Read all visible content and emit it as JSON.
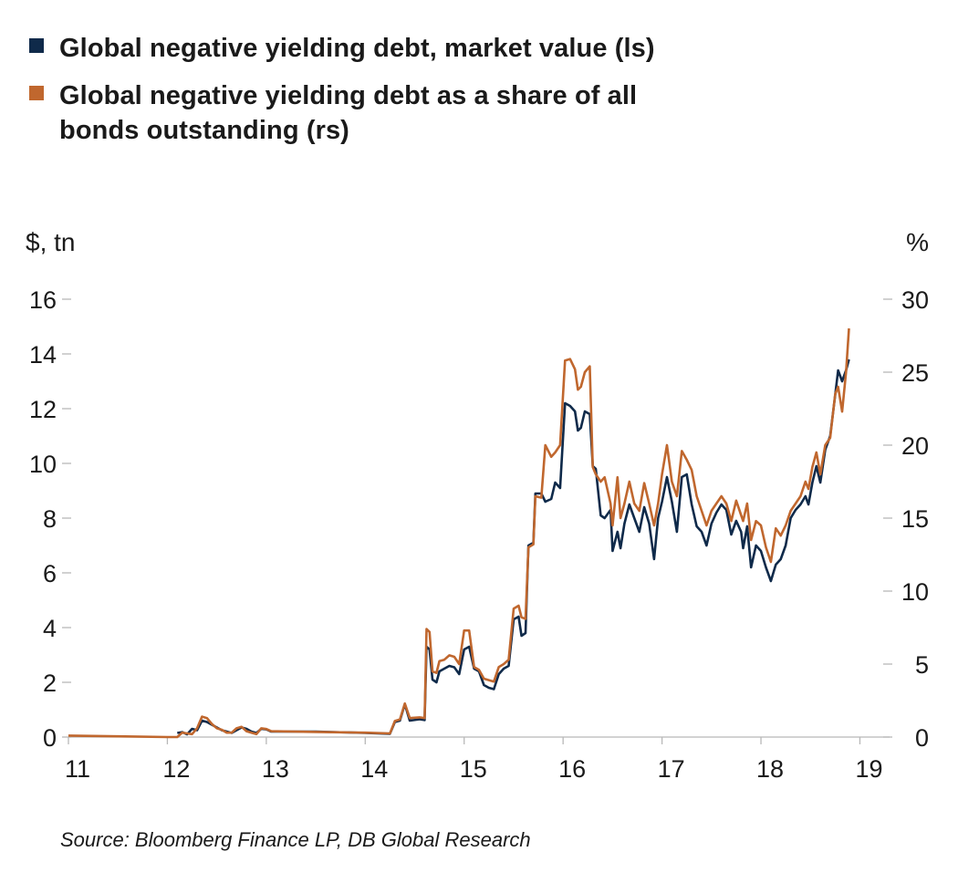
{
  "colors": {
    "navy": "#0f2a4a",
    "orange": "#c0672e",
    "grid": "#b8b8b8"
  },
  "chart_data": {
    "type": "line",
    "legend_placement": "top-left",
    "grid": false,
    "y_left_label": "$, tn",
    "y_right_label": "%",
    "y_left_range": [
      0,
      16
    ],
    "y_right_range": [
      0,
      30
    ],
    "y_left_ticks": [
      "0",
      "2",
      "4",
      "6",
      "8",
      "10",
      "12",
      "14",
      "16"
    ],
    "y_right_ticks": [
      "0",
      "5",
      "10",
      "15",
      "20",
      "25",
      "30"
    ],
    "x_range": [
      2011,
      2019.3
    ],
    "x_ticks": [
      "11",
      "12",
      "13",
      "14",
      "15",
      "16",
      "17",
      "18",
      "19"
    ],
    "series": [
      {
        "name": "Global negative yielding debt, market value (ls)",
        "axis": "left",
        "color": "navy",
        "points": [
          [
            2012.1,
            0.15
          ],
          [
            2012.15,
            0.18
          ],
          [
            2012.2,
            0.1
          ],
          [
            2012.25,
            0.3
          ],
          [
            2012.3,
            0.25
          ],
          [
            2012.35,
            0.6
          ],
          [
            2012.4,
            0.55
          ],
          [
            2012.45,
            0.45
          ],
          [
            2012.5,
            0.35
          ],
          [
            2012.55,
            0.25
          ],
          [
            2012.6,
            0.2
          ],
          [
            2012.65,
            0.15
          ],
          [
            2012.7,
            0.25
          ],
          [
            2012.75,
            0.35
          ],
          [
            2012.8,
            0.3
          ],
          [
            2012.85,
            0.2
          ],
          [
            2012.9,
            0.15
          ],
          [
            2012.95,
            0.3
          ],
          [
            2013.0,
            0.28
          ],
          [
            2013.05,
            0.2
          ],
          [
            2013.5,
            0.2
          ],
          [
            2014.0,
            0.15
          ],
          [
            2014.25,
            0.12
          ],
          [
            2014.3,
            0.55
          ],
          [
            2014.35,
            0.6
          ],
          [
            2014.4,
            1.2
          ],
          [
            2014.45,
            0.6
          ],
          [
            2014.55,
            0.65
          ],
          [
            2014.6,
            0.62
          ],
          [
            2014.62,
            3.3
          ],
          [
            2014.65,
            3.2
          ],
          [
            2014.68,
            2.1
          ],
          [
            2014.72,
            2.0
          ],
          [
            2014.75,
            2.4
          ],
          [
            2014.8,
            2.5
          ],
          [
            2014.85,
            2.6
          ],
          [
            2014.9,
            2.55
          ],
          [
            2014.95,
            2.3
          ],
          [
            2015.0,
            3.2
          ],
          [
            2015.05,
            3.3
          ],
          [
            2015.1,
            2.5
          ],
          [
            2015.15,
            2.4
          ],
          [
            2015.2,
            1.9
          ],
          [
            2015.25,
            1.8
          ],
          [
            2015.3,
            1.75
          ],
          [
            2015.35,
            2.3
          ],
          [
            2015.4,
            2.5
          ],
          [
            2015.45,
            2.6
          ],
          [
            2015.5,
            4.3
          ],
          [
            2015.55,
            4.4
          ],
          [
            2015.58,
            3.7
          ],
          [
            2015.62,
            3.8
          ],
          [
            2015.65,
            7.0
          ],
          [
            2015.7,
            7.1
          ],
          [
            2015.72,
            8.9
          ],
          [
            2015.78,
            8.9
          ],
          [
            2015.82,
            8.6
          ],
          [
            2015.88,
            8.7
          ],
          [
            2015.92,
            9.3
          ],
          [
            2015.97,
            9.1
          ],
          [
            2016.02,
            12.2
          ],
          [
            2016.07,
            12.1
          ],
          [
            2016.12,
            11.9
          ],
          [
            2016.15,
            11.2
          ],
          [
            2016.18,
            11.3
          ],
          [
            2016.22,
            11.9
          ],
          [
            2016.27,
            11.8
          ],
          [
            2016.3,
            9.9
          ],
          [
            2016.33,
            9.8
          ],
          [
            2016.38,
            8.1
          ],
          [
            2016.42,
            8.0
          ],
          [
            2016.48,
            8.3
          ],
          [
            2016.5,
            6.8
          ],
          [
            2016.55,
            7.5
          ],
          [
            2016.58,
            6.9
          ],
          [
            2016.62,
            7.8
          ],
          [
            2016.67,
            8.5
          ],
          [
            2016.72,
            8.0
          ],
          [
            2016.77,
            7.5
          ],
          [
            2016.82,
            8.4
          ],
          [
            2016.87,
            7.8
          ],
          [
            2016.92,
            6.5
          ],
          [
            2016.96,
            8.0
          ],
          [
            2017.0,
            8.6
          ],
          [
            2017.05,
            9.5
          ],
          [
            2017.1,
            8.6
          ],
          [
            2017.15,
            7.5
          ],
          [
            2017.2,
            9.5
          ],
          [
            2017.25,
            9.6
          ],
          [
            2017.3,
            8.5
          ],
          [
            2017.35,
            7.7
          ],
          [
            2017.4,
            7.5
          ],
          [
            2017.45,
            7.0
          ],
          [
            2017.5,
            7.8
          ],
          [
            2017.55,
            8.2
          ],
          [
            2017.6,
            8.5
          ],
          [
            2017.65,
            8.3
          ],
          [
            2017.7,
            7.4
          ],
          [
            2017.75,
            7.9
          ],
          [
            2017.8,
            7.5
          ],
          [
            2017.82,
            6.9
          ],
          [
            2017.86,
            7.7
          ],
          [
            2017.9,
            6.2
          ],
          [
            2017.95,
            7.0
          ],
          [
            2018.0,
            6.8
          ],
          [
            2018.05,
            6.2
          ],
          [
            2018.1,
            5.7
          ],
          [
            2018.15,
            6.3
          ],
          [
            2018.2,
            6.5
          ],
          [
            2018.25,
            7.0
          ],
          [
            2018.3,
            8.0
          ],
          [
            2018.35,
            8.3
          ],
          [
            2018.4,
            8.5
          ],
          [
            2018.45,
            8.8
          ],
          [
            2018.48,
            8.5
          ],
          [
            2018.52,
            9.3
          ],
          [
            2018.56,
            9.9
          ],
          [
            2018.6,
            9.3
          ],
          [
            2018.65,
            10.5
          ],
          [
            2018.7,
            11.0
          ],
          [
            2018.75,
            12.5
          ],
          [
            2018.78,
            13.4
          ],
          [
            2018.82,
            13.0
          ],
          [
            2018.86,
            13.4
          ],
          [
            2018.89,
            13.8
          ]
        ]
      },
      {
        "name": "Global negative yielding debt as a share of all bonds outstanding (rs)",
        "axis": "right",
        "color": "orange",
        "points": [
          [
            2011.0,
            0.1
          ],
          [
            2011.5,
            0.05
          ],
          [
            2012.0,
            0.0
          ],
          [
            2012.1,
            0.0
          ],
          [
            2012.15,
            0.3
          ],
          [
            2012.2,
            0.25
          ],
          [
            2012.25,
            0.2
          ],
          [
            2012.3,
            0.6
          ],
          [
            2012.35,
            1.4
          ],
          [
            2012.4,
            1.3
          ],
          [
            2012.45,
            0.9
          ],
          [
            2012.5,
            0.6
          ],
          [
            2012.55,
            0.5
          ],
          [
            2012.6,
            0.3
          ],
          [
            2012.65,
            0.3
          ],
          [
            2012.7,
            0.6
          ],
          [
            2012.75,
            0.7
          ],
          [
            2012.8,
            0.4
          ],
          [
            2012.85,
            0.3
          ],
          [
            2012.9,
            0.2
          ],
          [
            2012.95,
            0.6
          ],
          [
            2013.0,
            0.55
          ],
          [
            2013.05,
            0.4
          ],
          [
            2013.5,
            0.35
          ],
          [
            2014.0,
            0.3
          ],
          [
            2014.25,
            0.25
          ],
          [
            2014.3,
            1.1
          ],
          [
            2014.35,
            1.2
          ],
          [
            2014.4,
            2.3
          ],
          [
            2014.45,
            1.3
          ],
          [
            2014.55,
            1.35
          ],
          [
            2014.6,
            1.3
          ],
          [
            2014.62,
            7.4
          ],
          [
            2014.65,
            7.2
          ],
          [
            2014.68,
            4.5
          ],
          [
            2014.72,
            4.4
          ],
          [
            2014.75,
            5.2
          ],
          [
            2014.8,
            5.3
          ],
          [
            2014.85,
            5.6
          ],
          [
            2014.9,
            5.5
          ],
          [
            2014.95,
            5.0
          ],
          [
            2015.0,
            7.3
          ],
          [
            2015.05,
            7.3
          ],
          [
            2015.1,
            4.8
          ],
          [
            2015.15,
            4.6
          ],
          [
            2015.2,
            4.0
          ],
          [
            2015.25,
            3.9
          ],
          [
            2015.3,
            3.8
          ],
          [
            2015.35,
            4.8
          ],
          [
            2015.4,
            5.0
          ],
          [
            2015.45,
            5.3
          ],
          [
            2015.5,
            8.8
          ],
          [
            2015.55,
            9.0
          ],
          [
            2015.58,
            8.2
          ],
          [
            2015.62,
            8.1
          ],
          [
            2015.65,
            13.0
          ],
          [
            2015.7,
            13.2
          ],
          [
            2015.72,
            16.5
          ],
          [
            2015.78,
            16.4
          ],
          [
            2015.82,
            20.0
          ],
          [
            2015.88,
            19.2
          ],
          [
            2015.92,
            19.5
          ],
          [
            2015.97,
            20.0
          ],
          [
            2016.02,
            25.8
          ],
          [
            2016.07,
            25.9
          ],
          [
            2016.12,
            25.2
          ],
          [
            2016.15,
            23.8
          ],
          [
            2016.18,
            24.0
          ],
          [
            2016.22,
            25.0
          ],
          [
            2016.27,
            25.4
          ],
          [
            2016.3,
            18.5
          ],
          [
            2016.33,
            18.0
          ],
          [
            2016.38,
            17.5
          ],
          [
            2016.42,
            17.8
          ],
          [
            2016.48,
            16.0
          ],
          [
            2016.5,
            14.5
          ],
          [
            2016.55,
            17.8
          ],
          [
            2016.58,
            15.0
          ],
          [
            2016.62,
            16.0
          ],
          [
            2016.67,
            17.5
          ],
          [
            2016.72,
            16.0
          ],
          [
            2016.77,
            15.5
          ],
          [
            2016.82,
            17.4
          ],
          [
            2016.87,
            16.0
          ],
          [
            2016.92,
            14.5
          ],
          [
            2016.96,
            16.0
          ],
          [
            2017.0,
            18.0
          ],
          [
            2017.05,
            20.0
          ],
          [
            2017.1,
            17.5
          ],
          [
            2017.15,
            16.5
          ],
          [
            2017.2,
            19.6
          ],
          [
            2017.25,
            19.0
          ],
          [
            2017.3,
            18.3
          ],
          [
            2017.35,
            16.5
          ],
          [
            2017.4,
            15.5
          ],
          [
            2017.45,
            14.5
          ],
          [
            2017.5,
            15.5
          ],
          [
            2017.55,
            16.0
          ],
          [
            2017.6,
            16.5
          ],
          [
            2017.65,
            16.0
          ],
          [
            2017.7,
            14.8
          ],
          [
            2017.75,
            16.2
          ],
          [
            2017.8,
            15.2
          ],
          [
            2017.82,
            14.8
          ],
          [
            2017.86,
            16.0
          ],
          [
            2017.9,
            13.5
          ],
          [
            2017.95,
            14.8
          ],
          [
            2018.0,
            14.5
          ],
          [
            2018.05,
            13.0
          ],
          [
            2018.1,
            12.0
          ],
          [
            2018.15,
            14.3
          ],
          [
            2018.2,
            13.8
          ],
          [
            2018.25,
            14.5
          ],
          [
            2018.3,
            15.5
          ],
          [
            2018.35,
            16.0
          ],
          [
            2018.4,
            16.5
          ],
          [
            2018.45,
            17.5
          ],
          [
            2018.48,
            17.0
          ],
          [
            2018.52,
            18.5
          ],
          [
            2018.56,
            19.5
          ],
          [
            2018.6,
            18.0
          ],
          [
            2018.65,
            20.0
          ],
          [
            2018.7,
            20.5
          ],
          [
            2018.75,
            23.5
          ],
          [
            2018.78,
            24.0
          ],
          [
            2018.82,
            22.3
          ],
          [
            2018.86,
            25.0
          ],
          [
            2018.89,
            28.0
          ]
        ]
      }
    ]
  },
  "legend": [
    {
      "label": "Global negative yielding debt, market value (ls)",
      "color": "navy"
    },
    {
      "label": "Global negative yielding debt as a share of all bonds outstanding (rs)",
      "color": "orange"
    }
  ],
  "source": "Source: Bloomberg Finance LP, DB Global Research"
}
